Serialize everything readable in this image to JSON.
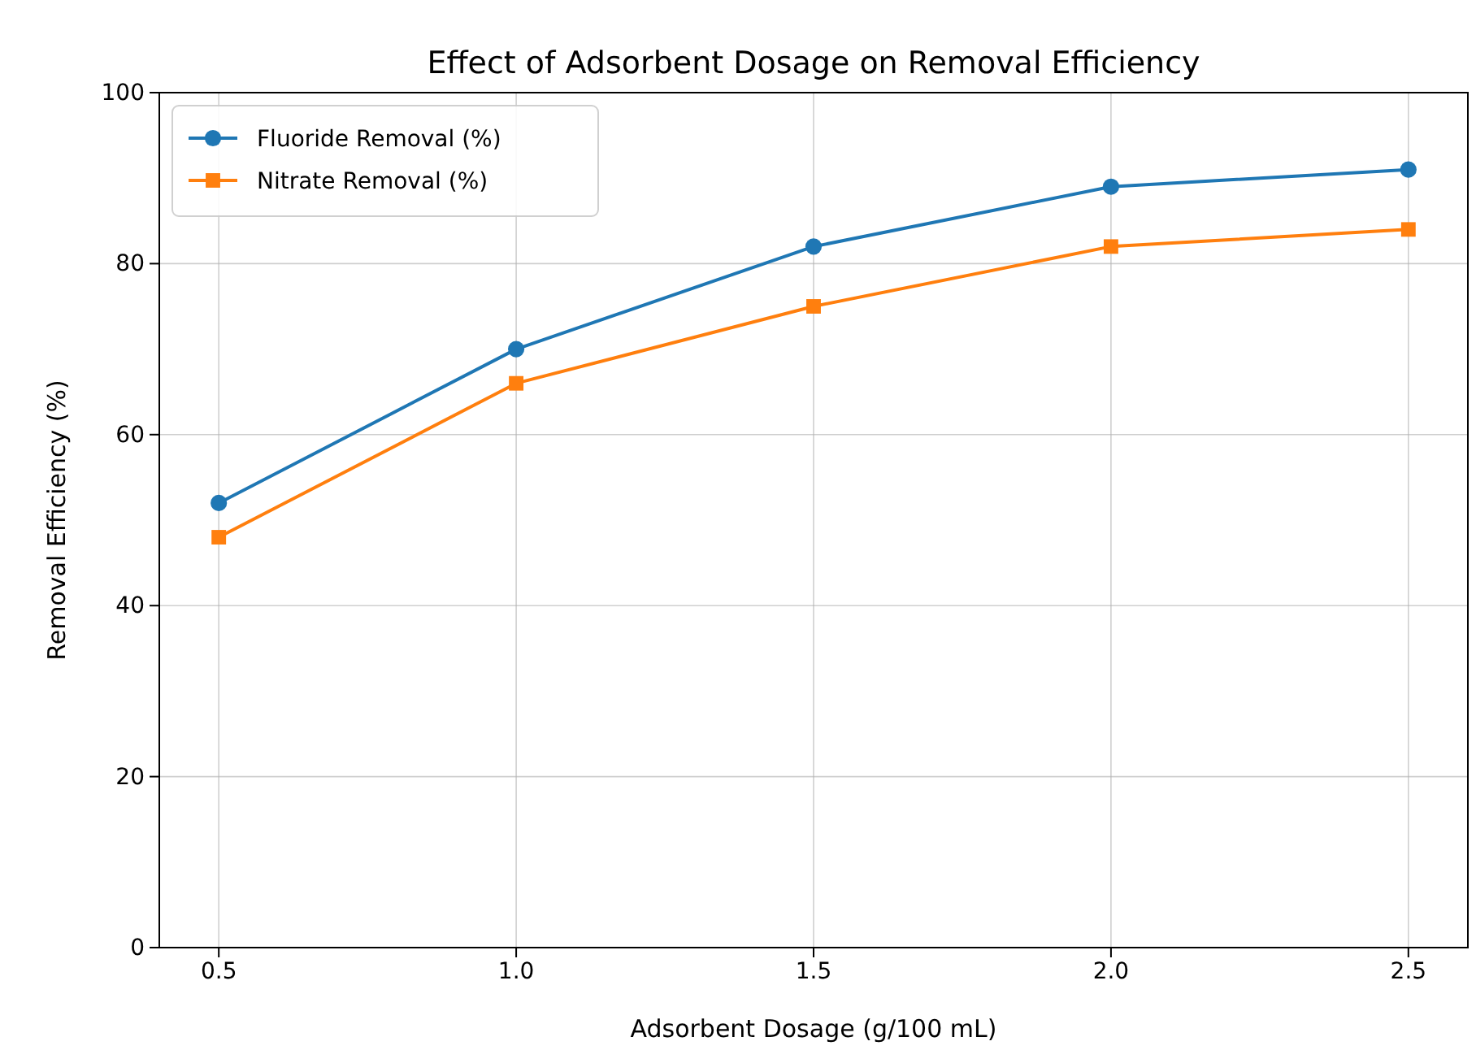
{
  "chart_data": {
    "type": "line",
    "title": "Effect of Adsorbent Dosage on Removal Efficiency",
    "xlabel": "Adsorbent Dosage (g/100 mL)",
    "ylabel": "Removal Efficiency (%)",
    "x": [
      0.5,
      1.0,
      1.5,
      2.0,
      2.5
    ],
    "series": [
      {
        "name": "Fluoride Removal (%)",
        "color": "#1f77b4",
        "marker": "circle",
        "values": [
          52,
          70,
          82,
          89,
          91
        ]
      },
      {
        "name": "Nitrate Removal (%)",
        "color": "#ff7f0e",
        "marker": "square",
        "values": [
          48,
          66,
          75,
          82,
          84
        ]
      }
    ],
    "xlim": [
      0.4,
      2.6
    ],
    "xticks": [
      {
        "value": 0.5,
        "label": "0.5"
      },
      {
        "value": 1.0,
        "label": "1.0"
      },
      {
        "value": 1.5,
        "label": "1.5"
      },
      {
        "value": 2.0,
        "label": "2.0"
      },
      {
        "value": 2.5,
        "label": "2.5"
      }
    ],
    "ylim": [
      0,
      100
    ],
    "yticks": [
      0,
      20,
      40,
      60,
      80,
      100
    ],
    "grid": true,
    "legend": "top left",
    "line_style": "solid"
  }
}
